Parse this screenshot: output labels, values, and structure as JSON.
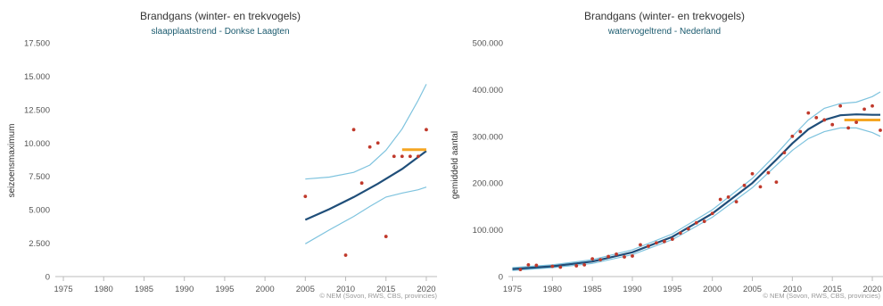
{
  "chart_data": [
    {
      "type": "line",
      "title": "Brandgans (winter- en trekvogels)",
      "subtitle": "slaapplaatstrend - Donkse Laagten",
      "xlabel": "",
      "ylabel": "seizoensmaximum",
      "xlim": [
        1974,
        2021
      ],
      "ylim": [
        0,
        17500
      ],
      "x_ticks": [
        "1975",
        "1980",
        "1985",
        "1990",
        "1995",
        "2000",
        "2005",
        "2010",
        "2015",
        "2020"
      ],
      "y_ticks": [
        "0",
        "2.500",
        "5.000",
        "7.500",
        "10.000",
        "12.500",
        "15.000",
        "17.500"
      ],
      "credits": "© NEM (Sovon, RWS, CBS, provincies)",
      "grid": false,
      "colors": {
        "trend": "#1f4e79",
        "band": "#7ec3de",
        "points": "#c0392b",
        "mean": "#f5a623"
      },
      "series": [
        {
          "kind": "points",
          "x": [
            2005,
            2010,
            2011,
            2012,
            2013,
            2014,
            2015,
            2016,
            2017,
            2018,
            2019,
            2020
          ],
          "y": [
            6000,
            1600,
            11000,
            7000,
            9700,
            10000,
            3000,
            9000,
            9000,
            9000,
            9000,
            11000
          ]
        },
        {
          "kind": "trend",
          "x": [
            2005,
            2008,
            2011,
            2014,
            2017,
            2020
          ],
          "y": [
            4250,
            5050,
            5950,
            6950,
            8050,
            9400
          ]
        },
        {
          "kind": "upper",
          "x": [
            2005,
            2008,
            2011,
            2013,
            2015,
            2017,
            2019,
            2020
          ],
          "y": [
            7300,
            7450,
            7800,
            8350,
            9450,
            11050,
            13200,
            14400
          ]
        },
        {
          "kind": "lower",
          "x": [
            2005,
            2008,
            2011,
            2013,
            2015,
            2017,
            2019,
            2020
          ],
          "y": [
            2450,
            3500,
            4500,
            5250,
            5950,
            6250,
            6500,
            6700
          ]
        },
        {
          "kind": "mean",
          "x": [
            2017,
            2020
          ],
          "y": [
            9500,
            9500
          ]
        }
      ]
    },
    {
      "type": "line",
      "title": "Brandgans (winter- en trekvogels)",
      "subtitle": "watervogeltrend - Nederland",
      "xlabel": "",
      "ylabel": "gemiddeld aantal",
      "xlim": [
        1974.5,
        2021
      ],
      "ylim": [
        0,
        500000
      ],
      "x_ticks": [
        "1975",
        "1980",
        "1985",
        "1990",
        "1995",
        "2000",
        "2005",
        "2010",
        "2015",
        "2020"
      ],
      "y_ticks": [
        "0",
        "100.000",
        "200.000",
        "300.000",
        "400.000",
        "500.000"
      ],
      "credits": "© NEM (Sovon, RWS, CBS, provincies)",
      "grid": false,
      "colors": {
        "trend": "#1f4e79",
        "band": "#7ec3de",
        "points": "#c0392b",
        "mean": "#f5a623"
      },
      "series": [
        {
          "kind": "points",
          "x": [
            1976,
            1977,
            1978,
            1980,
            1981,
            1983,
            1984,
            1985,
            1986,
            1987,
            1988,
            1989,
            1990,
            1991,
            1992,
            1993,
            1994,
            1995,
            1996,
            1997,
            1998,
            1999,
            2000,
            2001,
            2002,
            2003,
            2004,
            2005,
            2006,
            2007,
            2008,
            2009,
            2010,
            2011,
            2012,
            2013,
            2014,
            2015,
            2016,
            2017,
            2018,
            2019,
            2020,
            2021
          ],
          "y": [
            15000,
            25000,
            24000,
            22000,
            20000,
            23000,
            25000,
            38000,
            36000,
            43000,
            48000,
            42000,
            44000,
            68000,
            65000,
            72000,
            75000,
            80000,
            93000,
            102000,
            115000,
            118000,
            135000,
            165000,
            170000,
            160000,
            195000,
            220000,
            192000,
            222000,
            202000,
            265000,
            300000,
            310000,
            350000,
            340000,
            335000,
            325000,
            365000,
            318000,
            330000,
            358000,
            365000,
            313000
          ]
        },
        {
          "kind": "trend",
          "x": [
            1975,
            1980,
            1985,
            1990,
            1995,
            2000,
            2005,
            2008,
            2010,
            2012,
            2014,
            2016,
            2018,
            2020,
            2021
          ],
          "y": [
            16000,
            22000,
            32000,
            52000,
            85000,
            135000,
            200000,
            250000,
            285000,
            315000,
            335000,
            345000,
            347000,
            346000,
            346000
          ]
        },
        {
          "kind": "upper",
          "x": [
            1975,
            1980,
            1985,
            1990,
            1995,
            2000,
            2005,
            2008,
            2010,
            2012,
            2014,
            2016,
            2018,
            2020,
            2021
          ],
          "y": [
            19000,
            25000,
            36000,
            57000,
            91000,
            143000,
            210000,
            262000,
            300000,
            335000,
            360000,
            370000,
            373000,
            385000,
            395000
          ]
        },
        {
          "kind": "lower",
          "x": [
            1975,
            1980,
            1985,
            1990,
            1995,
            2000,
            2005,
            2008,
            2010,
            2012,
            2014,
            2016,
            2018,
            2020,
            2021
          ],
          "y": [
            13000,
            19000,
            28000,
            47000,
            79000,
            127000,
            190000,
            238000,
            270000,
            295000,
            310000,
            318000,
            318000,
            308000,
            300000
          ]
        },
        {
          "kind": "mean",
          "x": [
            2016.5,
            2021
          ],
          "y": [
            335000,
            335000
          ]
        }
      ]
    }
  ]
}
